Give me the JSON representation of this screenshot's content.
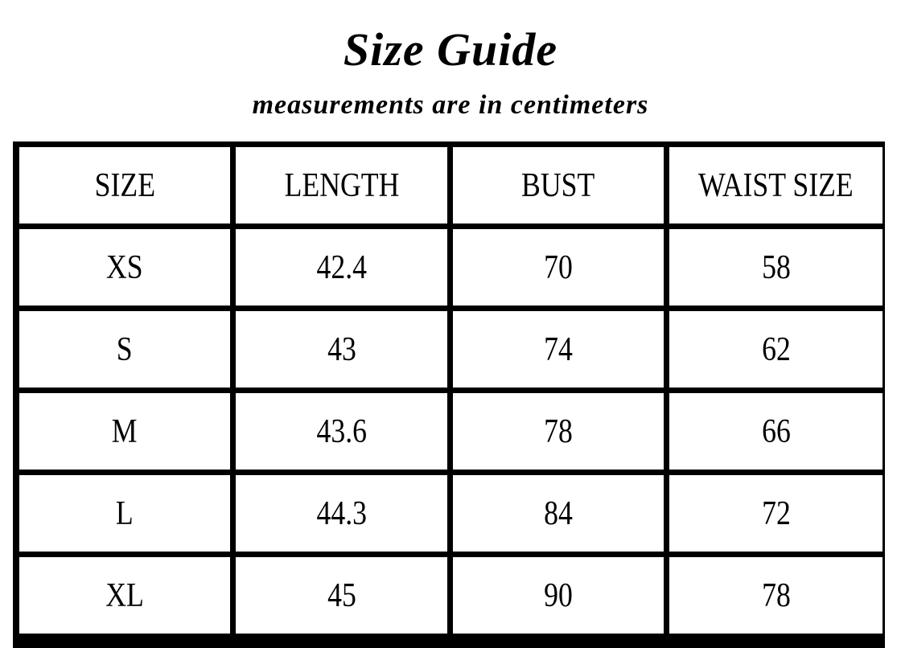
{
  "title": "Size Guide",
  "subtitle": "measurements are in centimeters",
  "table": {
    "headers": [
      "SIZE",
      "LENGTH",
      "BUST",
      "WAIST SIZE"
    ],
    "rows": [
      [
        "XS",
        "42.4",
        "70",
        "58"
      ],
      [
        "S",
        "43",
        "74",
        "62"
      ],
      [
        "M",
        "43.6",
        "78",
        "66"
      ],
      [
        "L",
        "44.3",
        "84",
        "72"
      ],
      [
        "XL",
        "45",
        "90",
        "78"
      ]
    ]
  }
}
